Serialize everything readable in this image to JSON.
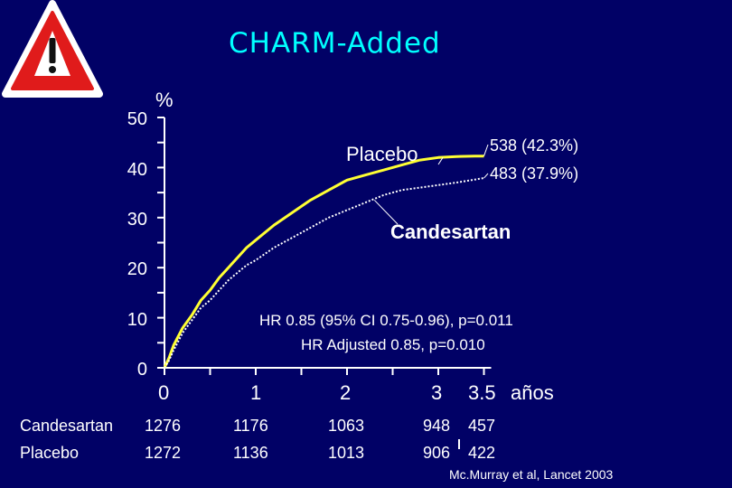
{
  "title": "CHARM-Added",
  "icons": {
    "warning": "warning-triangle-icon"
  },
  "chart_data": {
    "type": "line",
    "ylabel": "%",
    "xlabel": "años",
    "xlim": [
      0,
      3.5
    ],
    "ylim": [
      0,
      50
    ],
    "y_ticks": [
      "50",
      "40",
      "30",
      "20",
      "10",
      "0"
    ],
    "x_ticks": [
      "0",
      "1",
      "2",
      "3",
      "3.5"
    ],
    "grid": false,
    "series": [
      {
        "name": "Placebo",
        "style": "solid",
        "color": "#ffff33",
        "end_label": "538 (42.3%)",
        "x": [
          0,
          0.05,
          0.1,
          0.2,
          0.3,
          0.4,
          0.5,
          0.6,
          0.7,
          0.8,
          0.9,
          1.0,
          1.2,
          1.4,
          1.6,
          1.8,
          2.0,
          2.2,
          2.4,
          2.6,
          2.8,
          3.0,
          3.2,
          3.4,
          3.5
        ],
        "values": [
          0,
          2,
          4.5,
          8,
          10.5,
          13.5,
          15.5,
          18,
          20,
          22,
          24,
          25.5,
          28.5,
          31,
          33.5,
          35.5,
          37.5,
          38.5,
          39.5,
          40.5,
          41.5,
          42,
          42.2,
          42.3,
          42.3
        ]
      },
      {
        "name": "Candesartan",
        "style": "dotted",
        "color": "#ffffff",
        "end_label": "483 (37.9%)",
        "x": [
          0,
          0.05,
          0.1,
          0.2,
          0.3,
          0.4,
          0.5,
          0.6,
          0.7,
          0.8,
          0.9,
          1.0,
          1.2,
          1.4,
          1.6,
          1.8,
          2.0,
          2.2,
          2.4,
          2.6,
          2.8,
          3.0,
          3.2,
          3.4,
          3.5
        ],
        "values": [
          0,
          1.5,
          3.5,
          7,
          9.5,
          12,
          13.5,
          15.5,
          17.5,
          19,
          20.5,
          21.5,
          24,
          26,
          28,
          30,
          31.5,
          33,
          34.5,
          35.5,
          36,
          36.5,
          37,
          37.6,
          37.9
        ]
      }
    ],
    "annotations": [
      "HR 0.85  (95% CI 0.75-0.96), p=0.011",
      "HR Adjusted 0.85, p=0.010"
    ]
  },
  "risk_table": [
    {
      "name": "Candesartan",
      "values": [
        "1276",
        "1176",
        "1063",
        "948",
        "457"
      ]
    },
    {
      "name": "Placebo",
      "values": [
        "1272",
        "1136",
        "1013",
        "906",
        "422"
      ]
    }
  ],
  "citation": "Mc.Murray et al, Lancet 2003"
}
